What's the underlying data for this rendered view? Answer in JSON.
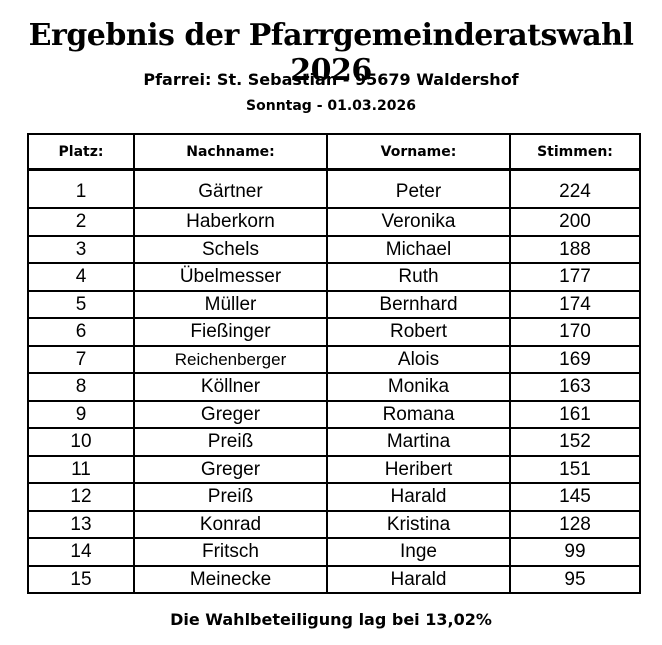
{
  "title": "Ergebnis der Pfarrgemeinderatswahl 2026",
  "subtitle": "Pfarrei: St. Sebastian - 95679 Waldershof",
  "date": "Sonntag -  01.03.2026",
  "table": {
    "headers": [
      "Platz:",
      "Nachname:",
      "Vorname:",
      "Stimmen:"
    ],
    "rows": [
      [
        "1",
        "Gärtner",
        "Peter",
        "224"
      ],
      [
        "2",
        "Haberkorn",
        "Veronika",
        "200"
      ],
      [
        "3",
        "Schels",
        "Michael",
        "188"
      ],
      [
        "4",
        "Übelmesser",
        "Ruth",
        "177"
      ],
      [
        "5",
        "Müller",
        "Bernhard",
        "174"
      ],
      [
        "6",
        "Fießinger",
        "Robert",
        "170"
      ],
      [
        "7",
        "Reichenberger",
        "Alois",
        "169"
      ],
      [
        "8",
        "Köllner",
        "Monika",
        "163"
      ],
      [
        "9",
        "Greger",
        "Romana",
        "161"
      ],
      [
        "10",
        "Preiß",
        "Martina",
        "152"
      ],
      [
        "11",
        "Greger",
        "Heribert",
        "151"
      ],
      [
        "12",
        "Preiß",
        "Harald",
        "145"
      ],
      [
        "13",
        "Konrad",
        "Kristina",
        "128"
      ],
      [
        "14",
        "Fritsch",
        "Inge",
        "99"
      ],
      [
        "15",
        "Meinecke",
        "Harald",
        "95"
      ]
    ]
  },
  "footer": "Die Wahlbeteiligung lag bei 13,02%"
}
